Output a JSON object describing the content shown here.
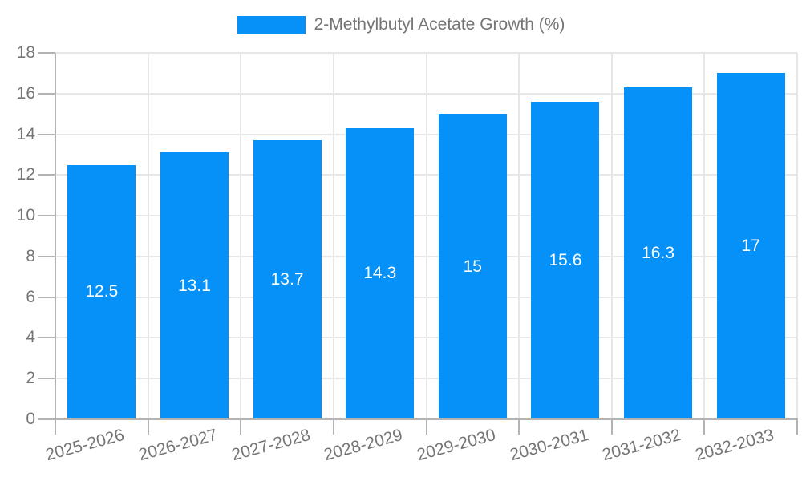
{
  "legend": {
    "label": "2-Methylbutyl Acetate Growth (%)"
  },
  "chart_data": {
    "type": "bar",
    "title": "2-Methylbutyl Acetate Growth (%)",
    "categories": [
      "2025-2026",
      "2026-2027",
      "2027-2028",
      "2028-2029",
      "2029-2030",
      "2030-2031",
      "2031-2032",
      "2032-2033"
    ],
    "values": [
      12.5,
      13.1,
      13.7,
      14.3,
      15,
      15.6,
      16.3,
      17
    ],
    "value_labels": [
      "12.5",
      "13.1",
      "13.7",
      "14.3",
      "15",
      "15.6",
      "16.3",
      "17"
    ],
    "xlabel": "",
    "ylabel": "",
    "ylim": [
      0,
      18
    ],
    "ytick_step": 2,
    "ytick_labels": [
      "0",
      "2",
      "4",
      "6",
      "8",
      "10",
      "12",
      "14",
      "16",
      "18"
    ],
    "grid": "both",
    "legend_position": "top-center",
    "colors": {
      "bar": "#0591f8",
      "grid": "#e7e7e7",
      "axis": "#b3b3b3",
      "tick_label": "#757575",
      "value_label": "#ffffff",
      "background": "#ffffff"
    }
  }
}
